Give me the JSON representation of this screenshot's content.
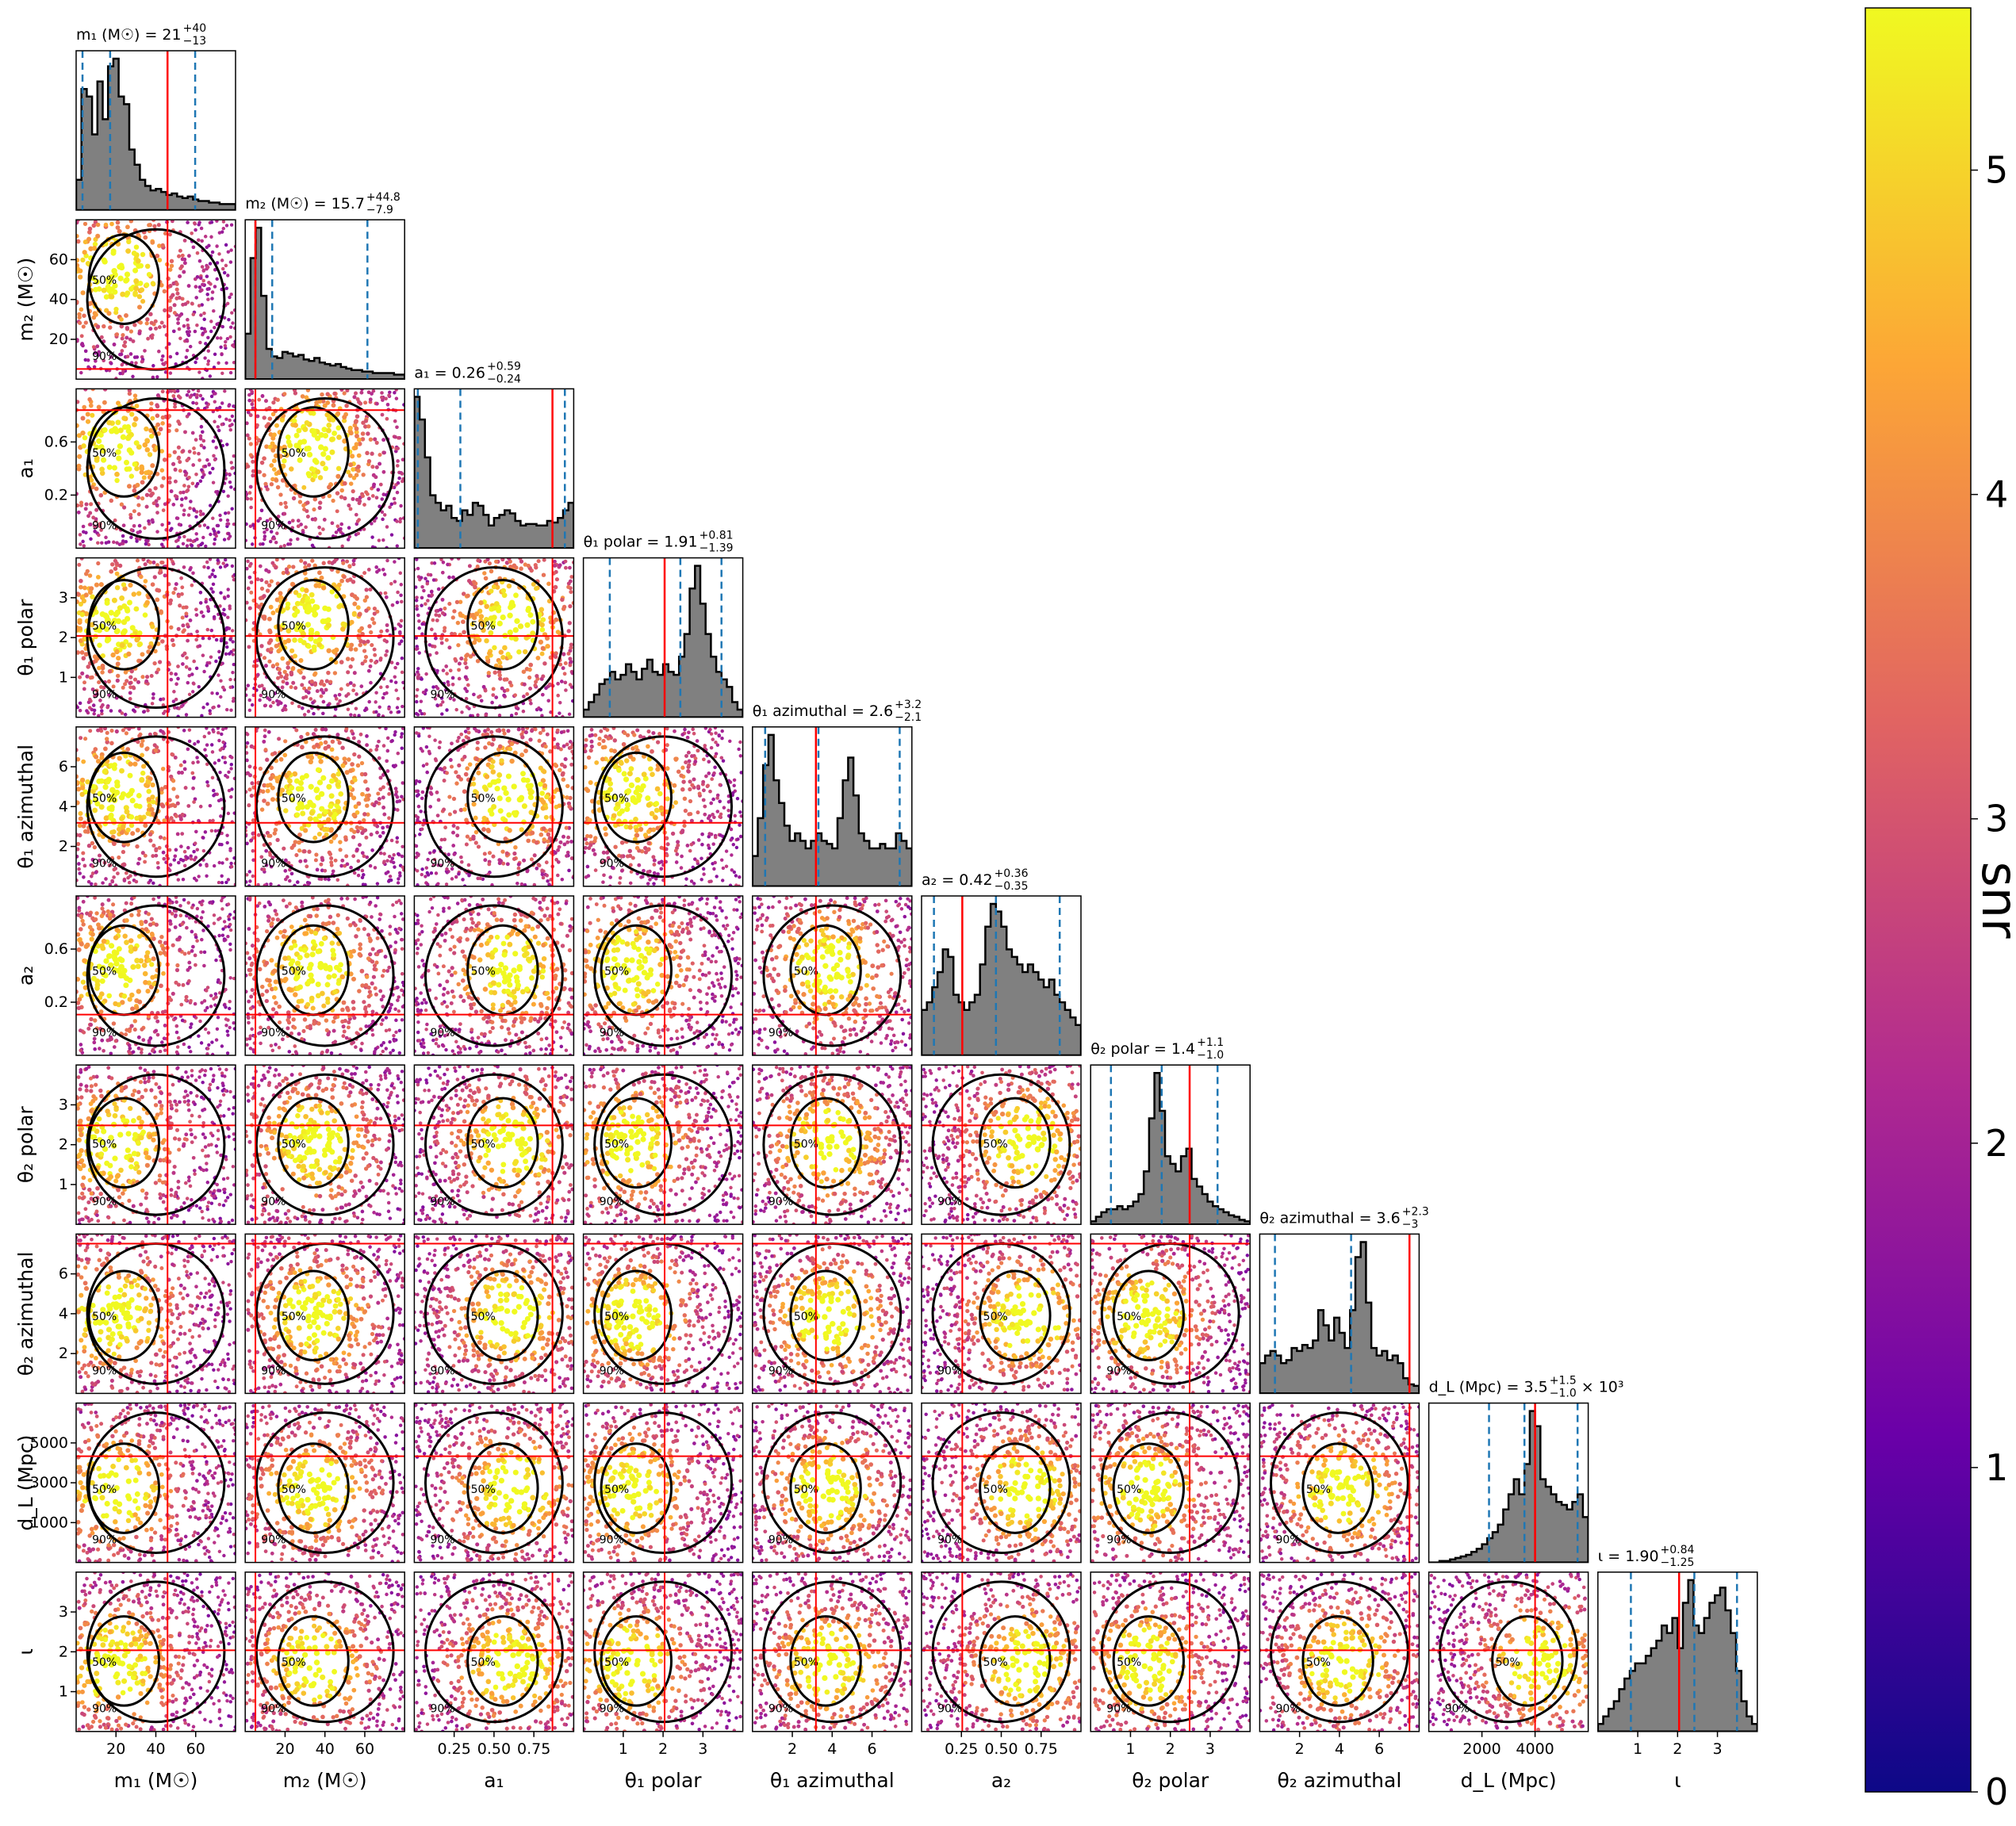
{
  "chart_data": {
    "type": "corner",
    "colorbar": {
      "label": "snr",
      "range": [
        0,
        5.5
      ],
      "ticks": [
        "0",
        "1",
        "2",
        "3",
        "4",
        "5"
      ],
      "colormap": "plasma",
      "stops": [
        "#0d0887",
        "#6a00a8",
        "#b12a90",
        "#e16462",
        "#fca636",
        "#f0f921"
      ]
    },
    "styles": {
      "hist_fill": "#808080",
      "hist_edge": "#000000",
      "quantile_color": "#1f77b4",
      "truth_color": "#ff0000",
      "contour_color": "#000000"
    },
    "contour_levels": [
      "50%",
      "90%"
    ],
    "parameters": [
      {
        "xlabel": "m₁ (M☉)",
        "ylabel": "",
        "range": [
          5,
          80
        ],
        "xticks": [
          "20",
          "40",
          "60"
        ],
        "yticks": [],
        "title": "m₁ (M☉) = 21",
        "sup": "+40",
        "sub": "−13",
        "suffix": "",
        "truth": 48,
        "q": [
          8,
          21,
          61
        ],
        "hist": [
          0.2,
          0.8,
          0.75,
          0.5,
          0.85,
          0.6,
          0.95,
          1.0,
          0.75,
          0.7,
          0.4,
          0.3,
          0.2,
          0.16,
          0.13,
          0.14,
          0.12,
          0.1,
          0.11,
          0.09,
          0.08,
          0.09,
          0.07,
          0.06,
          0.06,
          0.05,
          0.05,
          0.04,
          0.04,
          0.04
        ]
      },
      {
        "xlabel": "m₂ (M☉)",
        "ylabel": "m₂ (M☉)",
        "range": [
          3,
          78
        ],
        "xticks": [
          "20",
          "40",
          "60"
        ],
        "yticks": [
          "20",
          "40",
          "60"
        ],
        "title": "m₂ (M☉) = 15.7",
        "sup": "+44.8",
        "sub": "−7.9",
        "suffix": "",
        "truth": 7.8,
        "q": [
          7.8,
          15.7,
          60.5
        ],
        "hist": [
          0.3,
          0.8,
          1.0,
          0.55,
          0.2,
          0.15,
          0.14,
          0.18,
          0.17,
          0.15,
          0.16,
          0.13,
          0.12,
          0.14,
          0.11,
          0.1,
          0.09,
          0.1,
          0.08,
          0.07,
          0.06,
          0.06,
          0.05,
          0.05,
          0.04,
          0.04,
          0.04,
          0.04,
          0.03,
          0.03
        ]
      },
      {
        "xlabel": "a₁",
        "ylabel": "a₁",
        "range": [
          0,
          0.9
        ],
        "xticks": [
          "0.25",
          "0.50",
          "0.75"
        ],
        "yticks": [
          "0.2",
          "0.6"
        ],
        "title": "a₁ = 0.26",
        "sup": "+0.59",
        "sub": "−0.24",
        "suffix": "",
        "truth": 0.78,
        "q": [
          0.02,
          0.26,
          0.85
        ],
        "hist": [
          1.0,
          0.85,
          0.6,
          0.35,
          0.3,
          0.25,
          0.28,
          0.2,
          0.18,
          0.25,
          0.22,
          0.3,
          0.28,
          0.22,
          0.15,
          0.2,
          0.22,
          0.25,
          0.23,
          0.18,
          0.15,
          0.16,
          0.16,
          0.15,
          0.15,
          0.18,
          0.17,
          0.2,
          0.25,
          0.3
        ]
      },
      {
        "xlabel": "θ₁ polar",
        "ylabel": "θ₁ polar",
        "range": [
          0,
          3.14
        ],
        "xticks": [
          "1",
          "2",
          "3"
        ],
        "yticks": [
          "1",
          "2",
          "3"
        ],
        "title": "θ₁ polar = 1.91",
        "sup": "+0.81",
        "sub": "−1.39",
        "suffix": "",
        "truth": 1.6,
        "q": [
          0.52,
          1.91,
          2.72
        ],
        "hist": [
          0.05,
          0.1,
          0.15,
          0.22,
          0.25,
          0.3,
          0.25,
          0.28,
          0.35,
          0.3,
          0.25,
          0.32,
          0.38,
          0.3,
          0.28,
          0.35,
          0.3,
          0.28,
          0.4,
          0.55,
          0.85,
          1.0,
          0.75,
          0.55,
          0.4,
          0.3,
          0.25,
          0.2,
          0.1,
          0.05
        ]
      },
      {
        "xlabel": "θ₁ azimuthal",
        "ylabel": "θ₁ azimuthal",
        "range": [
          0,
          6.28
        ],
        "xticks": [
          "2",
          "4",
          "6"
        ],
        "yticks": [
          "2",
          "4",
          "6"
        ],
        "title": "θ₁ azimuthal = 2.6",
        "sup": "+3.2",
        "sub": "−2.1",
        "suffix": "",
        "truth": 2.5,
        "q": [
          0.5,
          2.6,
          5.8
        ],
        "hist": [
          0.2,
          0.45,
          0.8,
          1.0,
          0.7,
          0.55,
          0.4,
          0.3,
          0.35,
          0.3,
          0.25,
          0.3,
          0.35,
          0.3,
          0.28,
          0.25,
          0.45,
          0.7,
          0.85,
          0.6,
          0.35,
          0.3,
          0.25,
          0.25,
          0.28,
          0.25,
          0.25,
          0.35,
          0.3,
          0.25
        ]
      },
      {
        "xlabel": "a₂",
        "ylabel": "a₂",
        "range": [
          0,
          0.9
        ],
        "xticks": [
          "0.25",
          "0.50",
          "0.75"
        ],
        "yticks": [
          "0.2",
          "0.6"
        ],
        "title": "a₂ = 0.42",
        "sup": "+0.36",
        "sub": "−0.35",
        "suffix": "",
        "truth": 0.23,
        "q": [
          0.07,
          0.42,
          0.78
        ],
        "hist": [
          0.3,
          0.35,
          0.45,
          0.55,
          0.7,
          0.65,
          0.4,
          0.35,
          0.3,
          0.35,
          0.4,
          0.6,
          0.85,
          1.0,
          0.95,
          0.85,
          0.7,
          0.65,
          0.6,
          0.55,
          0.6,
          0.55,
          0.5,
          0.45,
          0.5,
          0.4,
          0.35,
          0.3,
          0.25,
          0.2
        ]
      },
      {
        "xlabel": "θ₂ polar",
        "ylabel": "θ₂ polar",
        "range": [
          0,
          3.14
        ],
        "xticks": [
          "1",
          "2",
          "3"
        ],
        "yticks": [
          "1",
          "2",
          "3"
        ],
        "title": "θ₂ polar = 1.4",
        "sup": "+1.1",
        "sub": "−1.0",
        "suffix": "",
        "truth": 1.95,
        "q": [
          0.4,
          1.4,
          2.5
        ],
        "hist": [
          0.02,
          0.05,
          0.08,
          0.1,
          0.1,
          0.12,
          0.1,
          0.12,
          0.15,
          0.2,
          0.35,
          0.7,
          1.0,
          0.75,
          0.45,
          0.4,
          0.35,
          0.45,
          0.5,
          0.3,
          0.25,
          0.2,
          0.15,
          0.12,
          0.1,
          0.08,
          0.06,
          0.05,
          0.03,
          0.02
        ]
      },
      {
        "xlabel": "θ₂ azimuthal",
        "ylabel": "θ₂ azimuthal",
        "range": [
          0,
          6.28
        ],
        "xticks": [
          "2",
          "4",
          "6"
        ],
        "yticks": [
          "2",
          "4",
          "6"
        ],
        "title": "θ₂ azimuthal = 3.6",
        "sup": "+2.3",
        "sub": "−3",
        "suffix": "",
        "truth": 5.9,
        "q": [
          0.6,
          3.6,
          5.9
        ],
        "hist": [
          0.2,
          0.25,
          0.28,
          0.25,
          0.2,
          0.22,
          0.3,
          0.28,
          0.32,
          0.3,
          0.35,
          0.55,
          0.45,
          0.35,
          0.5,
          0.4,
          0.3,
          0.55,
          0.9,
          1.0,
          0.6,
          0.3,
          0.25,
          0.28,
          0.22,
          0.25,
          0.2,
          0.1,
          0.06,
          0.05
        ]
      },
      {
        "xlabel": "d_L (Mpc)",
        "ylabel": "d_L (Mpc)",
        "range": [
          800,
          5300
        ],
        "xticks": [
          "2000",
          "4000"
        ],
        "yticks": [
          "1000",
          "3000",
          "5000"
        ],
        "title": "d_L (Mpc) = 3.5",
        "sup": "+1.5",
        "sub": "−1.0",
        "suffix": "× 10³",
        "truth": 3800,
        "q": [
          2500,
          3500,
          5000
        ],
        "hist": [
          0.0,
          0.0,
          0.01,
          0.01,
          0.02,
          0.03,
          0.04,
          0.05,
          0.07,
          0.09,
          0.12,
          0.16,
          0.2,
          0.25,
          0.35,
          0.45,
          0.55,
          0.45,
          0.65,
          1.0,
          0.9,
          0.55,
          0.5,
          0.45,
          0.4,
          0.38,
          0.35,
          0.4,
          0.45,
          0.3
        ]
      },
      {
        "xlabel": "ι",
        "ylabel": "ι",
        "range": [
          0,
          3.14
        ],
        "xticks": [
          "1",
          "2",
          "3"
        ],
        "yticks": [
          "1",
          "2",
          "3"
        ],
        "title": "ι = 1.90",
        "sup": "+0.84",
        "sub": "−1.25",
        "suffix": "",
        "truth": 1.6,
        "q": [
          0.65,
          1.9,
          2.74
        ],
        "hist": [
          0.05,
          0.1,
          0.15,
          0.2,
          0.28,
          0.35,
          0.4,
          0.45,
          0.45,
          0.5,
          0.55,
          0.6,
          0.7,
          0.65,
          0.75,
          0.55,
          0.85,
          1.0,
          0.7,
          0.65,
          0.75,
          0.85,
          0.9,
          0.95,
          0.8,
          0.65,
          0.4,
          0.2,
          0.1,
          0.05
        ]
      }
    ]
  }
}
